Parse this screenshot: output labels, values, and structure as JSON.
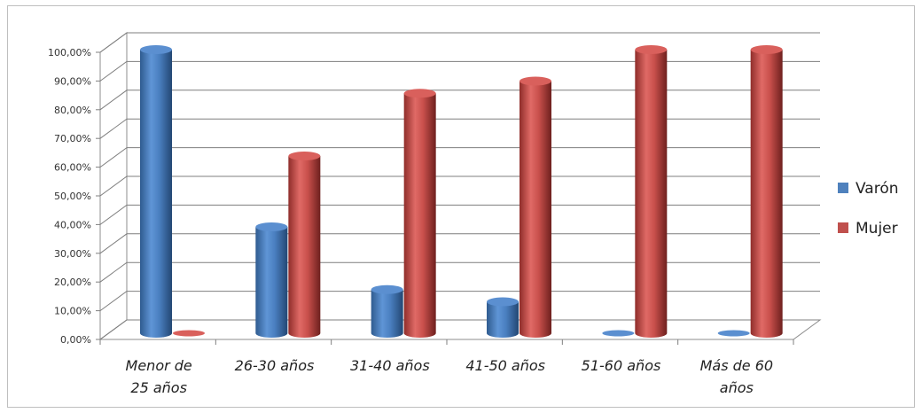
{
  "chart_data": {
    "type": "bar",
    "style": "3d-cylinder",
    "categories": [
      [
        "Menor de",
        "25 años"
      ],
      [
        "26-30 años"
      ],
      [
        "31-40 años"
      ],
      [
        "41-50 años"
      ],
      [
        "51-60 años"
      ],
      [
        "Más de 60",
        "años"
      ]
    ],
    "series": [
      {
        "name": "Varón",
        "color": "#4f81bd",
        "values": [
          100,
          37.5,
          15.4,
          11.1,
          0,
          0
        ]
      },
      {
        "name": "Mujer",
        "color": "#c0504d",
        "values": [
          0,
          62.5,
          84.6,
          88.9,
          100,
          100
        ]
      }
    ],
    "y_ticks": [
      "0,00%",
      "10,00%",
      "20,00%",
      "30,00%",
      "40,00%",
      "50,00%",
      "60,00%",
      "70,00%",
      "80,00%",
      "90,00%",
      "100,00%"
    ],
    "ylim": [
      0,
      100
    ],
    "grid": true,
    "legend_position": "right"
  }
}
